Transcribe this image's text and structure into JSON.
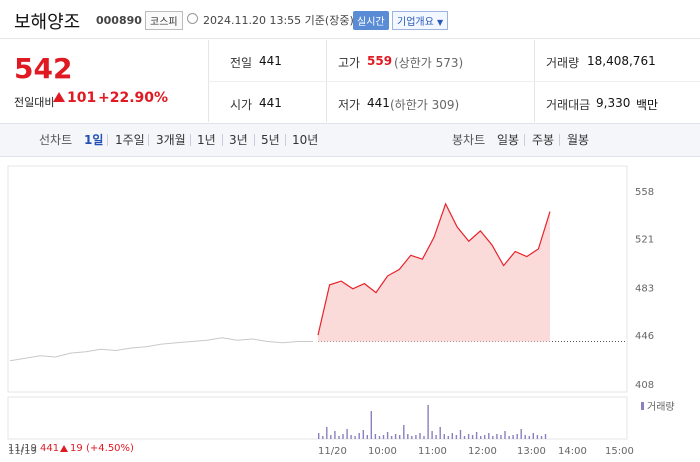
{
  "header": {
    "stock_name": "보해양조",
    "stock_code": "000890",
    "market_badge": "코스피",
    "datetime": "2024.11.20 13:55 기준(장중)",
    "realtime_label": "실시간",
    "overview_button": "기업개요",
    "overview_icon": "chevron-down-icon"
  },
  "summary": {
    "price": "542",
    "change_label": "전일대비",
    "change_value": "101",
    "change_percent": "+22.90%",
    "prev_close_label": "전일",
    "prev_close": "441",
    "open_label": "시가",
    "open": "441",
    "high_label": "고가",
    "high": "559",
    "upper_limit": "(상한가 573)",
    "low_label": "저가",
    "low": "441",
    "lower_limit": "(하한가 309)",
    "volume_label": "거래량",
    "volume": "18,408,761",
    "amount_label": "거래대금",
    "amount": "9,330",
    "amount_unit": "백만"
  },
  "toolbar": {
    "line_label": "선차트",
    "line_tabs": [
      "1일",
      "1주일",
      "3개월",
      "1년",
      "3년",
      "5년",
      "10년"
    ],
    "active_tab": "1일",
    "candle_label": "봉차트",
    "candle_tabs": [
      "일봉",
      "주봉",
      "월봉"
    ]
  },
  "chart_data": {
    "type": "line",
    "y_ticks": [
      "558",
      "521",
      "483",
      "446",
      "408"
    ],
    "ylim": [
      408,
      558
    ],
    "x_ticks": [
      "11/19",
      "11/20",
      "10:00",
      "11:00",
      "12:00",
      "13:00",
      "14:00",
      "15:00"
    ],
    "prev_close_line": 441,
    "prev_day_info": {
      "date": "11/19",
      "price": "441",
      "change": "19",
      "percent": "(+4.50%)"
    },
    "volume_legend": "거래량",
    "colors": {
      "today": "#e8232b",
      "fill": "#fbdada",
      "prev": "#c9c9c9",
      "volume": "#8b7fbf"
    },
    "series": [
      {
        "x": [
          0,
          0.05,
          0.1,
          0.15,
          0.2,
          0.25,
          0.3,
          0.35,
          0.4,
          0.45,
          0.5,
          0.55,
          0.6,
          0.65,
          0.7,
          0.75,
          0.8,
          0.85,
          0.9,
          0.95,
          1.0
        ],
        "values": [
          426,
          428,
          430,
          429,
          432,
          433,
          435,
          434,
          436,
          437,
          439,
          440,
          441,
          442,
          444,
          442,
          443,
          441,
          440,
          441,
          441
        ]
      },
      {
        "x": [
          0,
          0.05,
          0.1,
          0.15,
          0.2,
          0.25,
          0.3,
          0.35,
          0.4,
          0.45,
          0.5,
          0.55,
          0.6,
          0.65,
          0.7,
          0.75,
          0.8,
          0.85,
          0.9,
          0.95,
          1.0
        ],
        "values": [
          446,
          485,
          488,
          482,
          486,
          479,
          492,
          497,
          508,
          505,
          522,
          548,
          530,
          519,
          527,
          516,
          500,
          511,
          507,
          513,
          542
        ]
      }
    ]
  }
}
